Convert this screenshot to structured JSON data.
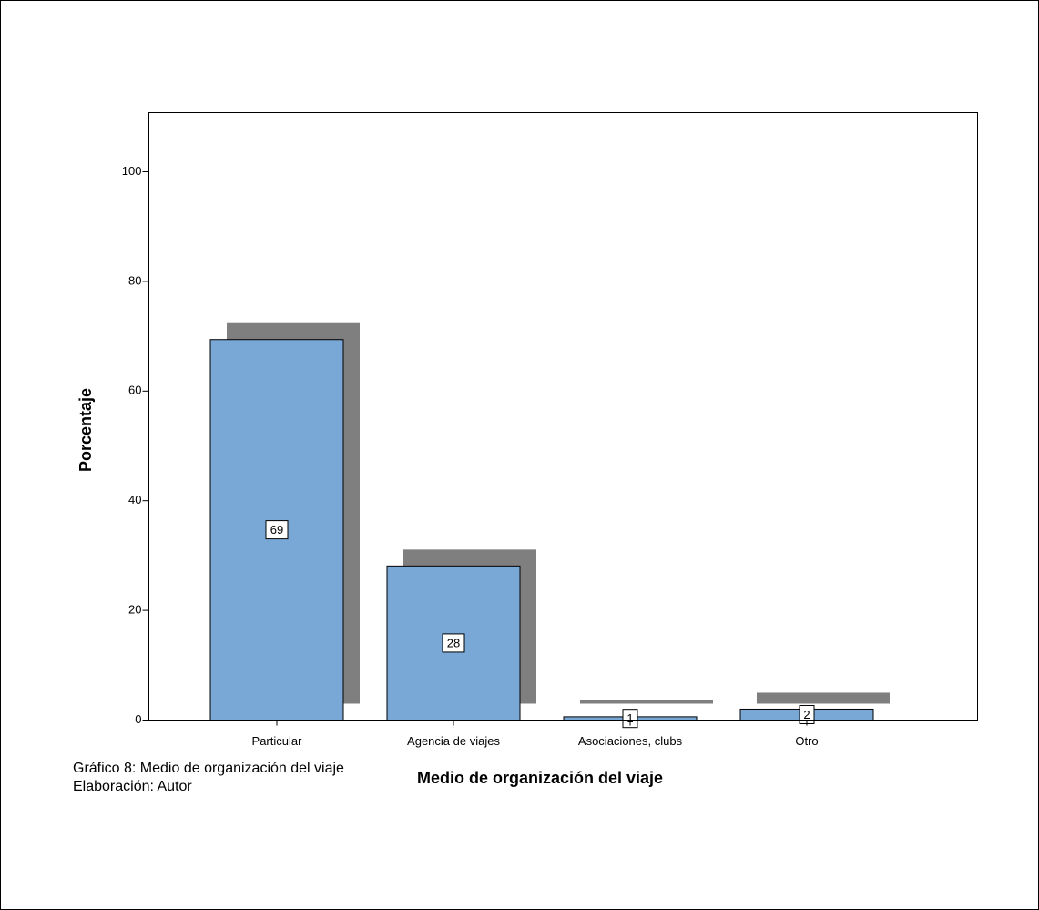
{
  "chart_data": {
    "type": "bar",
    "title": "Medio de organización del viaje",
    "y_label": "Porcentaje",
    "categories": [
      "Particular",
      "Agencia de viajes",
      "Asociaciones, clubs",
      "Otro"
    ],
    "values": [
      69.4,
      28.1,
      0.6,
      2.0
    ],
    "value_labels": [
      "69",
      "28",
      "1",
      "2"
    ],
    "color": "#79a8d6",
    "shadow_color": "#7f7f7f",
    "ylim": [
      0,
      110.8
    ],
    "yticks": [
      0,
      20,
      40,
      60,
      80,
      100
    ],
    "grid": false
  },
  "caption": [
    "Gráfico 8: Medio de organización del viaje",
    "Elaboración: Autor"
  ]
}
